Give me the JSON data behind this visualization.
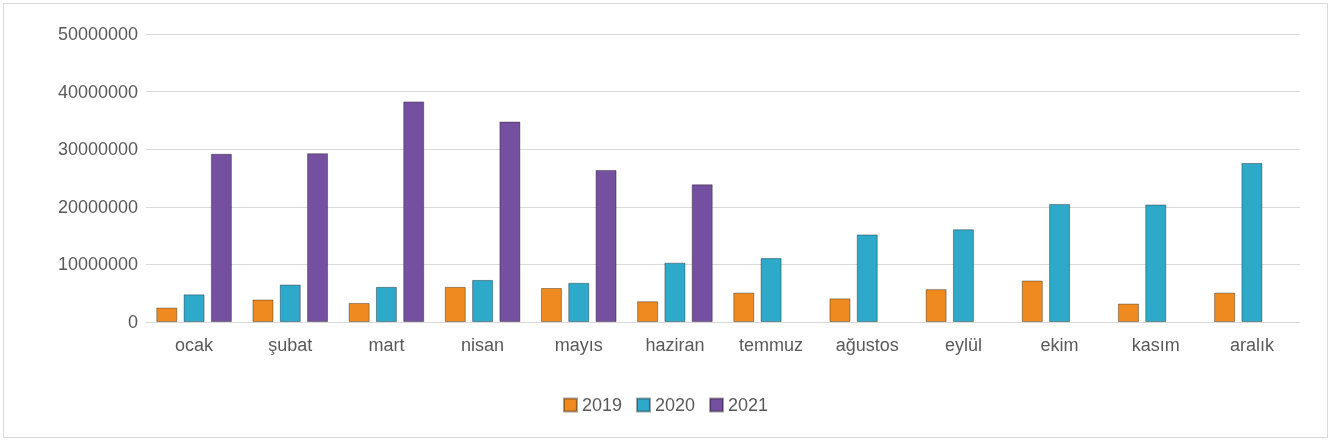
{
  "chart_data": {
    "type": "bar",
    "categories": [
      "ocak",
      "şubat",
      "mart",
      "nisan",
      "mayıs",
      "haziran",
      "temmuz",
      "ağustos",
      "eylül",
      "ekim",
      "kasım",
      "aralık"
    ],
    "series": [
      {
        "name": "2019",
        "color": "#ee8a1f",
        "values": [
          2500000,
          3900000,
          3300000,
          6100000,
          5900000,
          3600000,
          5100000,
          4100000,
          5700000,
          7200000,
          3200000,
          5100000
        ]
      },
      {
        "name": "2020",
        "color": "#2fa9c9",
        "values": [
          4800000,
          6500000,
          6100000,
          7300000,
          6800000,
          10300000,
          11100000,
          15200000,
          16100000,
          20500000,
          20400000,
          27600000
        ]
      },
      {
        "name": "2021",
        "color": "#7650a0",
        "values": [
          29200000,
          29300000,
          38300000,
          34800000,
          26400000,
          23900000,
          null,
          null,
          null,
          null,
          null,
          null
        ]
      }
    ],
    "ylim": [
      0,
      50000000
    ],
    "yticks": [
      0,
      10000000,
      20000000,
      30000000,
      40000000,
      50000000
    ],
    "grid": "y",
    "legend": "bottom"
  }
}
